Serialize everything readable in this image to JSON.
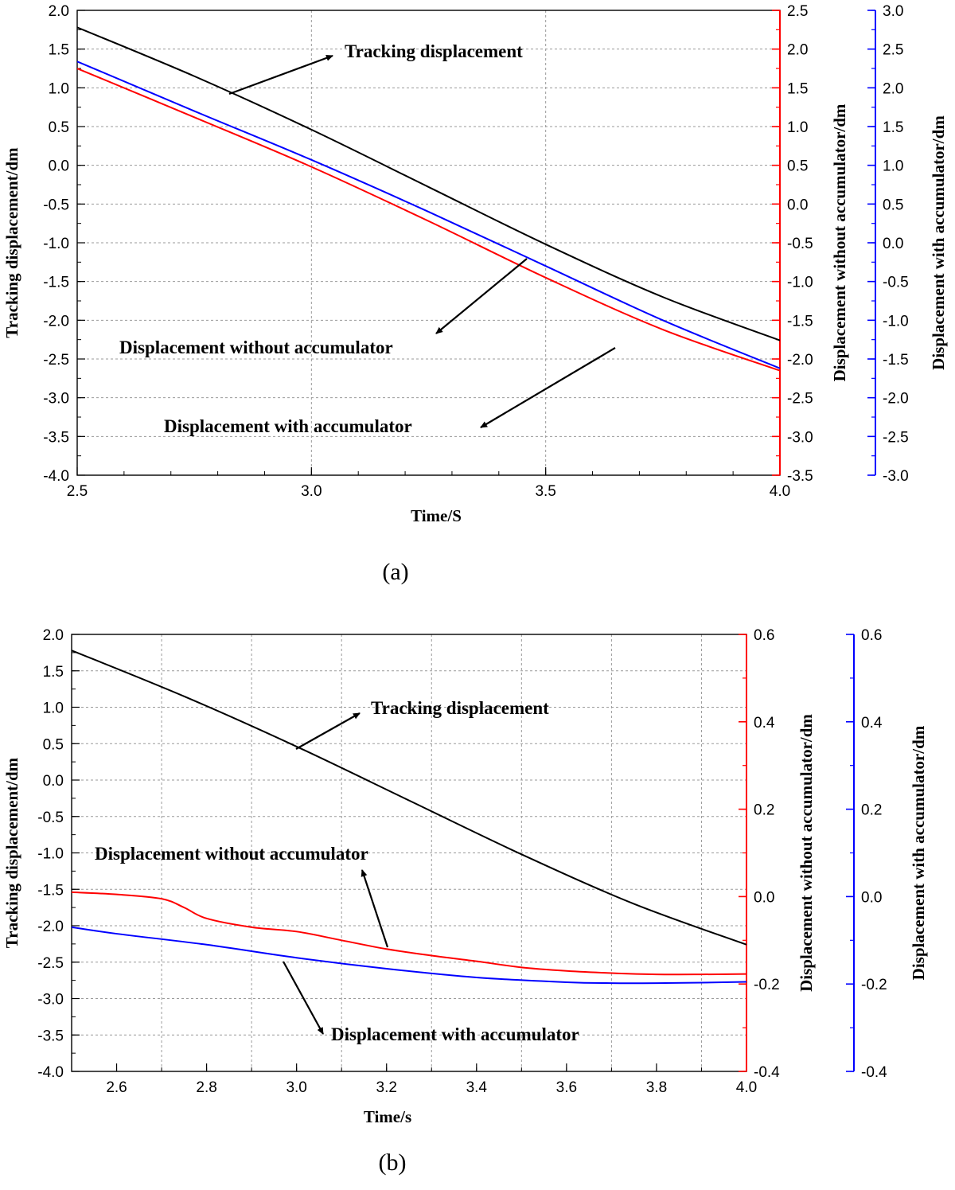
{
  "chart_data": [
    {
      "id": "a",
      "type": "line",
      "caption": "(a)",
      "xlabel": "Time/S",
      "xlim": [
        2.5,
        4.0
      ],
      "xticks": [
        "2.5",
        "3.0",
        "3.5",
        "4.0"
      ],
      "y_axes": [
        {
          "key": "left",
          "label": "Tracking displacement/dm",
          "color": "#000000",
          "lim": [
            -4.0,
            2.0
          ],
          "ticks": [
            "-4.0",
            "-3.5",
            "-3.0",
            "-2.5",
            "-2.0",
            "-1.5",
            "-1.0",
            "-0.5",
            "0.0",
            "0.5",
            "1.0",
            "1.5",
            "2.0"
          ]
        },
        {
          "key": "right1",
          "label": "Displacement without accumulator/dm",
          "color": "#ff0000",
          "lim": [
            -3.5,
            2.5
          ],
          "ticks": [
            "-3.5",
            "-3.0",
            "-2.5",
            "-2.0",
            "-1.5",
            "-1.0",
            "-0.5",
            "0.0",
            "0.5",
            "1.0",
            "1.5",
            "2.0",
            "2.5"
          ]
        },
        {
          "key": "right2",
          "label": "Displacement with accumulator/dm",
          "color": "#0000ff",
          "lim": [
            -3.0,
            3.0
          ],
          "ticks": [
            "-3.0",
            "-2.5",
            "-2.0",
            "-1.5",
            "-1.0",
            "-0.5",
            "0.0",
            "0.5",
            "1.0",
            "1.5",
            "2.0",
            "2.5",
            "3.0"
          ]
        }
      ],
      "series": [
        {
          "name": "Tracking displacement",
          "axis": "left",
          "color": "#000000",
          "x": [
            2.5,
            2.75,
            3.0,
            3.25,
            3.5,
            3.75,
            4.0
          ],
          "y": [
            1.78,
            1.15,
            0.46,
            -0.28,
            -1.02,
            -1.7,
            -2.26
          ]
        },
        {
          "name": "Displacement without accumulator",
          "axis": "right1",
          "color": "#ff0000",
          "x": [
            2.5,
            2.75,
            3.0,
            3.25,
            3.5,
            3.75,
            4.0
          ],
          "y": [
            1.75,
            1.12,
            0.48,
            -0.22,
            -0.95,
            -1.62,
            -2.15
          ]
        },
        {
          "name": "Displacement with accumulator",
          "axis": "right2",
          "color": "#0000ff",
          "x": [
            2.5,
            2.75,
            3.0,
            3.25,
            3.5,
            3.75,
            4.0
          ],
          "y": [
            2.34,
            1.7,
            1.07,
            0.4,
            -0.3,
            -1.0,
            -1.62
          ]
        }
      ],
      "annotations": [
        {
          "text": "Tracking displacement",
          "series": "Tracking displacement"
        },
        {
          "text": "Displacement without accumulator",
          "series": "Displacement without accumulator"
        },
        {
          "text": "Displacement with accumulator",
          "series": "Displacement with accumulator"
        }
      ]
    },
    {
      "id": "b",
      "type": "line",
      "caption": "(b)",
      "xlabel": "Time/s",
      "xlim": [
        2.5,
        4.0
      ],
      "xticks": [
        "2.6",
        "2.8",
        "3.0",
        "3.2",
        "3.4",
        "3.6",
        "3.8",
        "4.0"
      ],
      "y_axes": [
        {
          "key": "left",
          "label": "Tracking displacement/dm",
          "color": "#000000",
          "lim": [
            -4.0,
            2.0
          ],
          "ticks": [
            "-4.0",
            "-3.5",
            "-3.0",
            "-2.5",
            "-2.0",
            "-1.5",
            "-1.0",
            "-0.5",
            "0.0",
            "0.5",
            "1.0",
            "1.5",
            "2.0"
          ]
        },
        {
          "key": "right1",
          "label": "Displacement without accumulator/dm",
          "color": "#ff0000",
          "lim": [
            -0.4,
            0.6
          ],
          "ticks": [
            "-0.4",
            "-0.2",
            "0.0",
            "0.2",
            "0.4",
            "0.6"
          ]
        },
        {
          "key": "right2",
          "label": "Displacement with accumulator/dm",
          "color": "#0000ff",
          "lim": [
            -0.4,
            0.6
          ],
          "ticks": [
            "-0.4",
            "-0.2",
            "0.0",
            "0.2",
            "0.4",
            "0.6"
          ]
        }
      ],
      "series": [
        {
          "name": "Tracking displacement",
          "axis": "left",
          "color": "#000000",
          "x": [
            2.5,
            2.75,
            3.0,
            3.25,
            3.5,
            3.75,
            4.0
          ],
          "y": [
            1.78,
            1.15,
            0.46,
            -0.28,
            -1.02,
            -1.7,
            -2.26
          ]
        },
        {
          "name": "Displacement without accumulator",
          "axis": "right1",
          "color": "#ff0000",
          "x": [
            2.5,
            2.6,
            2.7,
            2.75,
            2.8,
            2.9,
            3.0,
            3.1,
            3.2,
            3.3,
            3.4,
            3.5,
            3.6,
            3.7,
            3.8,
            3.9,
            4.0
          ],
          "y": [
            0.01,
            0.005,
            -0.005,
            -0.025,
            -0.05,
            -0.07,
            -0.08,
            -0.1,
            -0.12,
            -0.135,
            -0.148,
            -0.162,
            -0.17,
            -0.175,
            -0.178,
            -0.178,
            -0.177
          ]
        },
        {
          "name": "Displacement with accumulator",
          "axis": "right2",
          "color": "#0000ff",
          "x": [
            2.5,
            2.6,
            2.8,
            3.0,
            3.2,
            3.4,
            3.6,
            3.7,
            3.8,
            3.9,
            4.0
          ],
          "y": [
            -0.07,
            -0.085,
            -0.11,
            -0.14,
            -0.165,
            -0.185,
            -0.196,
            -0.198,
            -0.198,
            -0.197,
            -0.195
          ]
        }
      ],
      "annotations": [
        {
          "text": "Tracking displacement",
          "series": "Tracking displacement"
        },
        {
          "text": "Displacement without accumulator",
          "series": "Displacement without accumulator"
        },
        {
          "text": "Displacement with accumulator",
          "series": "Displacement with accumulator"
        }
      ]
    }
  ]
}
